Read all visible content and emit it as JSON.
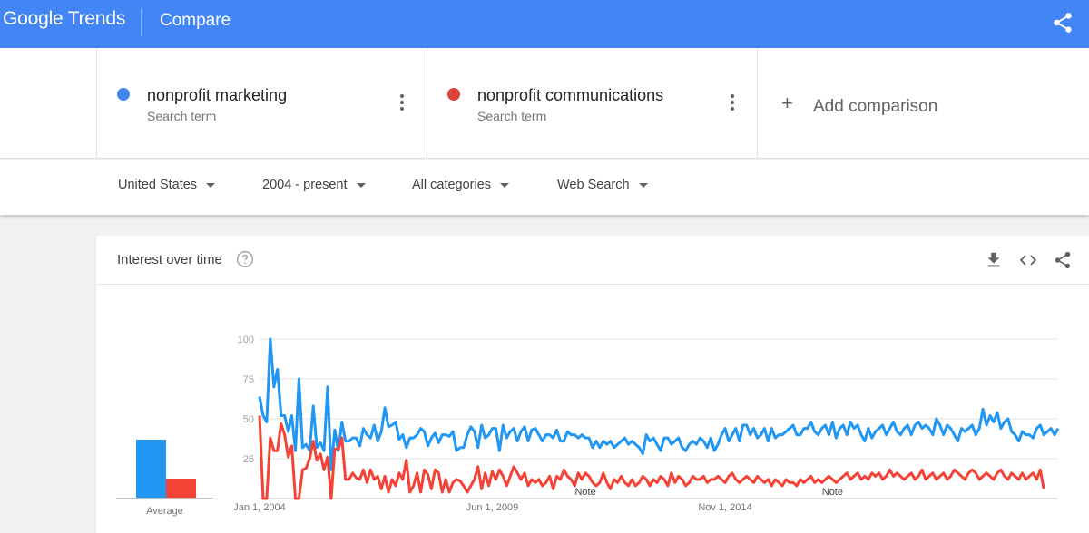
{
  "header": {
    "logo": "Google Trends",
    "title": "Compare",
    "share_icon": "share-icon"
  },
  "terms": [
    {
      "name": "nonprofit marketing",
      "subtitle": "Search term",
      "color": "#4285f4"
    },
    {
      "name": "nonprofit communications",
      "subtitle": "Search term",
      "color": "#db4437"
    }
  ],
  "add_comparison": {
    "icon": "+",
    "label": "Add comparison"
  },
  "filters": {
    "region": "United States",
    "time": "2004 - present",
    "category": "All categories",
    "search_type": "Web Search"
  },
  "card": {
    "title": "Interest over time",
    "icons": [
      "help-icon",
      "download-icon",
      "embed-icon",
      "share-icon"
    ]
  },
  "average": {
    "label": "Average",
    "values": [
      38,
      13
    ],
    "colors": [
      "#2196f3",
      "#f44336"
    ]
  },
  "chart_data": {
    "type": "line",
    "ylim": [
      0,
      100
    ],
    "y_ticks": [
      "25",
      "50",
      "75",
      "100"
    ],
    "x_tick_labels": [
      "Jan 1, 2004",
      "Jun 1, 2009",
      "Nov 1, 2014"
    ],
    "x_tick_index": [
      0,
      65,
      130
    ],
    "notes": [
      {
        "label": "Note",
        "index": 91
      },
      {
        "label": "Note",
        "index": 160
      }
    ],
    "series": [
      {
        "name": "nonprofit marketing",
        "color": "#2196f3",
        "values": [
          64,
          52,
          48,
          100,
          70,
          81,
          52,
          52,
          42,
          52,
          30,
          75,
          32,
          34,
          30,
          58,
          32,
          35,
          30,
          70,
          18,
          43,
          30,
          48,
          36,
          36,
          38,
          38,
          33,
          44,
          40,
          38,
          46,
          36,
          42,
          57,
          45,
          46,
          48,
          37,
          40,
          32,
          38,
          38,
          40,
          44,
          42,
          33,
          38,
          41,
          35,
          40,
          40,
          39,
          42,
          30,
          32,
          32,
          40,
          45,
          42,
          32,
          46,
          38,
          40,
          44,
          44,
          30,
          46,
          38,
          42,
          44,
          36,
          42,
          45,
          36,
          43,
          44,
          40,
          36,
          40,
          40,
          38,
          43,
          36,
          36,
          42,
          40,
          40,
          38,
          40,
          38,
          38,
          32,
          36,
          32,
          36,
          34,
          36,
          32,
          34,
          36,
          38,
          34,
          36,
          34,
          32,
          28,
          40,
          36,
          38,
          34,
          30,
          38,
          38,
          34,
          36,
          38,
          32,
          30,
          34,
          36,
          34,
          38,
          36,
          32,
          38,
          30,
          34,
          40,
          44,
          36,
          40,
          44,
          36,
          46,
          46,
          40,
          44,
          38,
          40,
          44,
          36,
          44,
          38,
          40,
          40,
          42,
          44,
          46,
          40,
          40,
          44,
          44,
          48,
          42,
          40,
          44,
          46,
          40,
          48,
          38,
          44,
          46,
          40,
          48,
          44,
          46,
          40,
          36,
          44,
          38,
          42,
          44,
          46,
          40,
          44,
          48,
          42,
          40,
          44,
          46,
          40,
          46,
          48,
          44,
          46,
          44,
          40,
          50,
          46,
          40,
          46,
          44,
          40,
          36,
          44,
          42,
          44,
          46,
          40,
          44,
          56,
          46,
          52,
          48,
          54,
          44,
          48,
          50,
          42,
          40,
          36,
          42,
          40,
          40,
          38,
          44,
          46,
          40,
          42,
          44,
          40,
          44
        ]
      },
      {
        "name": "nonprofit communications",
        "color": "#f44336",
        "values": [
          52,
          0,
          0,
          38,
          30,
          30,
          47,
          40,
          26,
          33,
          0,
          0,
          18,
          19,
          25,
          36,
          24,
          28,
          18,
          26,
          0,
          31,
          31,
          38,
          12,
          12,
          16,
          13,
          12,
          18,
          10,
          18,
          12,
          14,
          6,
          14,
          4,
          12,
          8,
          16,
          12,
          24,
          4,
          8,
          16,
          4,
          18,
          15,
          6,
          18,
          16,
          4,
          12,
          4,
          10,
          12,
          11,
          8,
          4,
          8,
          12,
          20,
          6,
          16,
          8,
          17,
          12,
          18,
          14,
          8,
          14,
          20,
          16,
          12,
          16,
          8,
          12,
          10,
          12,
          8,
          10,
          14,
          6,
          14,
          12,
          18,
          14,
          12,
          8,
          16,
          12,
          16,
          14,
          10,
          8,
          10,
          16,
          10,
          6,
          12,
          10,
          14,
          10,
          8,
          12,
          8,
          10,
          14,
          12,
          8,
          12,
          10,
          14,
          12,
          8,
          16,
          10,
          14,
          12,
          8,
          10,
          14,
          12,
          12,
          14,
          10,
          12,
          12,
          14,
          12,
          10,
          14,
          16,
          12,
          10,
          12,
          14,
          12,
          10,
          14,
          12,
          10,
          12,
          8,
          12,
          10,
          8,
          12,
          10,
          10,
          8,
          12,
          10,
          12,
          14,
          10,
          12,
          10,
          12,
          14,
          12,
          10,
          12,
          14,
          16,
          12,
          14,
          16,
          12,
          14,
          12,
          16,
          14,
          16,
          12,
          14,
          18,
          14,
          16,
          14,
          12,
          14,
          16,
          12,
          14,
          18,
          12,
          14,
          16,
          12,
          14,
          16,
          12,
          14,
          18,
          16,
          14,
          12,
          16,
          18,
          16,
          12,
          14,
          16,
          14,
          12,
          16,
          18,
          14,
          12,
          16,
          14,
          12,
          16,
          12,
          14,
          16,
          12,
          18,
          6
        ]
      }
    ]
  }
}
